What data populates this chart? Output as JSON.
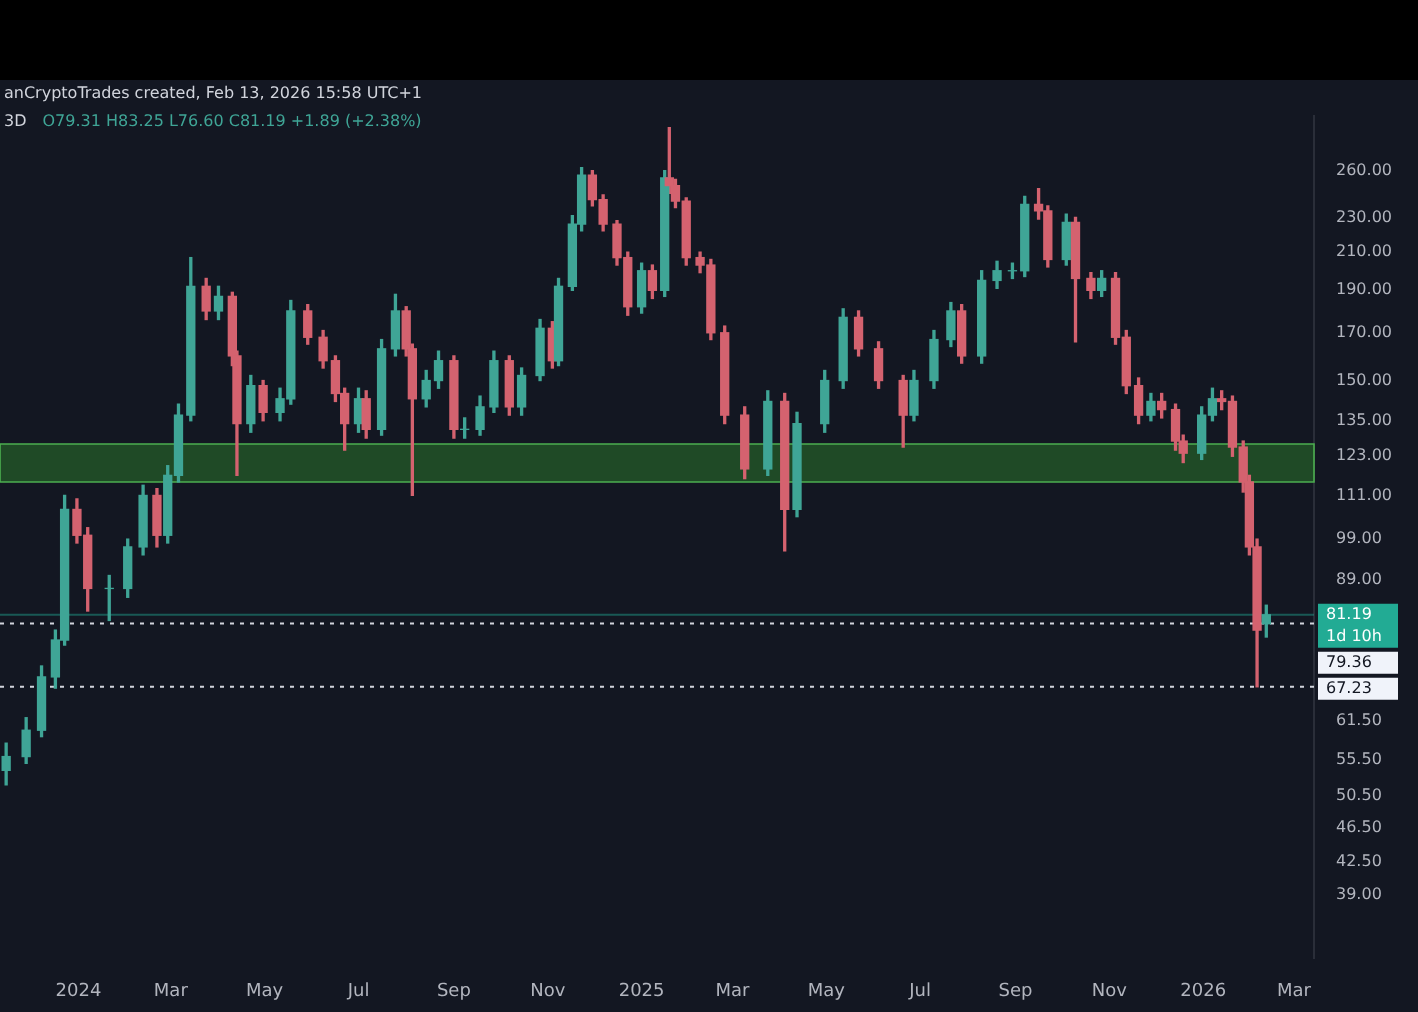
{
  "chart_data": {
    "type": "candlestick",
    "title": "3D",
    "subtitle": "O79.31 H83.25 L76.60 C81.19 +1.89 (+2.38%)",
    "annotations": [
      "anCryptoTrades created, Feb 13, 2026 15:58 UTC+1",
      "1d 10h"
    ],
    "log": true,
    "xlim": [
      "2023-11-11",
      "2026-03-14"
    ],
    "xticks": [
      {
        "value": "2024-01-01",
        "label": "2024"
      },
      {
        "value": "2024-03-01",
        "label": "Mar"
      },
      {
        "value": "2024-05-01",
        "label": "May"
      },
      {
        "value": "2024-07-01",
        "label": "Jul"
      },
      {
        "value": "2024-09-01",
        "label": "Sep"
      },
      {
        "value": "2024-11-01",
        "label": "Nov"
      },
      {
        "value": "2025-01-01",
        "label": "2025"
      },
      {
        "value": "2025-03-01",
        "label": "Mar"
      },
      {
        "value": "2025-05-01",
        "label": "May"
      },
      {
        "value": "2025-07-01",
        "label": "Jul"
      },
      {
        "value": "2025-09-01",
        "label": "Sep"
      },
      {
        "value": "2025-11-01",
        "label": "Nov"
      },
      {
        "value": "2026-01-01",
        "label": "2026"
      },
      {
        "value": "2026-03-01",
        "label": "Mar"
      }
    ],
    "ylim": [
      33,
      300
    ],
    "yticks": [
      {
        "value": 39,
        "label": "39.00"
      },
      {
        "value": 42.5,
        "label": "42.50"
      },
      {
        "value": 46.5,
        "label": "46.50"
      },
      {
        "value": 50.5,
        "label": "50.50"
      },
      {
        "value": 55.5,
        "label": "55.50"
      },
      {
        "value": 61.5,
        "label": "61.50"
      },
      {
        "value": 89,
        "label": "89.00"
      },
      {
        "value": 99,
        "label": "99.00"
      },
      {
        "value": 111,
        "label": "111.00"
      },
      {
        "value": 123,
        "label": "123.00"
      },
      {
        "value": 135,
        "label": "135.00"
      },
      {
        "value": 150,
        "label": "150.00"
      },
      {
        "value": 170,
        "label": "170.00"
      },
      {
        "value": 190,
        "label": "190.00"
      },
      {
        "value": 210,
        "label": "210.00"
      },
      {
        "value": 230,
        "label": "230.00"
      },
      {
        "value": 260,
        "label": "260.00"
      }
    ],
    "bands": [
      {
        "axis": "y",
        "from": 115,
        "to": 127,
        "color": "#1f4a26"
      }
    ],
    "ref_lines": [
      {
        "axis": "y",
        "value": 81.19,
        "label": "81.19",
        "color": "#22ab94",
        "line_style": "solid"
      },
      {
        "axis": "y",
        "value": 79.36,
        "label": "79.36",
        "color": "#d1d4dc",
        "line_style": "dotted"
      },
      {
        "axis": "y",
        "value": 67.23,
        "label": "67.23",
        "color": "#d1d4dc",
        "line_style": "dotted"
      }
    ],
    "x": [
      "2023-11-15",
      "2023-11-28",
      "2023-12-08",
      "2023-12-17",
      "2023-12-23",
      "2023-12-31",
      "2024-01-07",
      "2024-01-21",
      "2024-02-02",
      "2024-02-12",
      "2024-02-21",
      "2024-02-28",
      "2024-03-06",
      "2024-03-14",
      "2024-03-24",
      "2024-04-01",
      "2024-04-10",
      "2024-04-13",
      "2024-04-22",
      "2024-04-30",
      "2024-05-11",
      "2024-05-18",
      "2024-05-29",
      "2024-06-08",
      "2024-06-16",
      "2024-06-22",
      "2024-07-01",
      "2024-07-06",
      "2024-07-16",
      "2024-07-25",
      "2024-08-01",
      "2024-08-05",
      "2024-08-14",
      "2024-08-22",
      "2024-09-01",
      "2024-09-08",
      "2024-09-18",
      "2024-09-27",
      "2024-10-07",
      "2024-10-15",
      "2024-10-27",
      "2024-11-04",
      "2024-11-08",
      "2024-11-17",
      "2024-11-23",
      "2024-11-30",
      "2024-12-07",
      "2024-12-16",
      "2024-12-23",
      "2025-01-01",
      "2025-01-08",
      "2025-01-16",
      "2025-01-19",
      "2025-01-23",
      "2025-01-30",
      "2025-02-08",
      "2025-02-15",
      "2025-02-24",
      "2025-03-09",
      "2025-03-24",
      "2025-04-04",
      "2025-04-12",
      "2025-04-30",
      "2025-05-12",
      "2025-05-22",
      "2025-06-04",
      "2025-06-20",
      "2025-06-27",
      "2025-07-10",
      "2025-07-21",
      "2025-07-28",
      "2025-08-10",
      "2025-08-20",
      "2025-08-30",
      "2025-09-07",
      "2025-09-16",
      "2025-09-22",
      "2025-10-04",
      "2025-10-10",
      "2025-10-20",
      "2025-10-27",
      "2025-11-05",
      "2025-11-12",
      "2025-11-20",
      "2025-11-28",
      "2025-12-05",
      "2025-12-14",
      "2025-12-19",
      "2025-12-31",
      "2026-01-07",
      "2026-01-13",
      "2026-01-20",
      "2026-01-27",
      "2026-01-31",
      "2026-02-05",
      "2026-02-11"
    ],
    "ohlc": [
      [
        54,
        58,
        52,
        56
      ],
      [
        56,
        62,
        55,
        60
      ],
      [
        60,
        71,
        59,
        69
      ],
      [
        69,
        78,
        67,
        76
      ],
      [
        76,
        111,
        75,
        107
      ],
      [
        107,
        110,
        98,
        100
      ],
      [
        100,
        102,
        82,
        87
      ],
      [
        87,
        90,
        80,
        87
      ],
      [
        87,
        99,
        85,
        97
      ],
      [
        97,
        114,
        95,
        111
      ],
      [
        111,
        113,
        97,
        100
      ],
      [
        100,
        120,
        98,
        117
      ],
      [
        117,
        141,
        115,
        137
      ],
      [
        137,
        207,
        135,
        192
      ],
      [
        192,
        196,
        176,
        180
      ],
      [
        180,
        192,
        176,
        187
      ],
      [
        187,
        189,
        156,
        160
      ],
      [
        160,
        162,
        117,
        134
      ],
      [
        134,
        152,
        131,
        148
      ],
      [
        148,
        150,
        135,
        138
      ],
      [
        138,
        147,
        135,
        143
      ],
      [
        143,
        185,
        141,
        180
      ],
      [
        180,
        183,
        165,
        168
      ],
      [
        168,
        171,
        155,
        158
      ],
      [
        158,
        160,
        142,
        145
      ],
      [
        145,
        147,
        125,
        134
      ],
      [
        134,
        147,
        131,
        143
      ],
      [
        143,
        146,
        129,
        132
      ],
      [
        132,
        167,
        130,
        163
      ],
      [
        163,
        188,
        160,
        180
      ],
      [
        180,
        182,
        160,
        163
      ],
      [
        163,
        165,
        111,
        143
      ],
      [
        143,
        154,
        140,
        150
      ],
      [
        150,
        162,
        147,
        158
      ],
      [
        158,
        160,
        129,
        132
      ],
      [
        132,
        136,
        129,
        132
      ],
      [
        132,
        144,
        130,
        140
      ],
      [
        140,
        162,
        138,
        158
      ],
      [
        158,
        160,
        137,
        140
      ],
      [
        140,
        155,
        137,
        152
      ],
      [
        152,
        176,
        150,
        172
      ],
      [
        172,
        175,
        155,
        158
      ],
      [
        158,
        196,
        156,
        192
      ],
      [
        192,
        231,
        190,
        226
      ],
      [
        226,
        262,
        222,
        257
      ],
      [
        257,
        260,
        237,
        241
      ],
      [
        241,
        244,
        222,
        226
      ],
      [
        226,
        228,
        203,
        207
      ],
      [
        207,
        210,
        178,
        182
      ],
      [
        182,
        204,
        179,
        200
      ],
      [
        200,
        203,
        186,
        190
      ],
      [
        190,
        260,
        187,
        255
      ],
      [
        255,
        291,
        245,
        250
      ],
      [
        250,
        254,
        236,
        240
      ],
      [
        240,
        242,
        203,
        207
      ],
      [
        207,
        210,
        199,
        203
      ],
      [
        203,
        206,
        167,
        170
      ],
      [
        170,
        173,
        134,
        137
      ],
      [
        137,
        140,
        116,
        119
      ],
      [
        119,
        146,
        117,
        142
      ],
      [
        142,
        145,
        96,
        107
      ],
      [
        107,
        138,
        105,
        134
      ],
      [
        134,
        154,
        131,
        150
      ],
      [
        150,
        181,
        147,
        177
      ],
      [
        177,
        180,
        160,
        163
      ],
      [
        163,
        166,
        147,
        150
      ],
      [
        150,
        152,
        126,
        137
      ],
      [
        137,
        154,
        135,
        150
      ],
      [
        150,
        171,
        147,
        167
      ],
      [
        167,
        184,
        164,
        180
      ],
      [
        180,
        183,
        157,
        160
      ],
      [
        160,
        200,
        157,
        195
      ],
      [
        195,
        205,
        191,
        200
      ],
      [
        200,
        204,
        196,
        200
      ],
      [
        200,
        243,
        197,
        238
      ],
      [
        238,
        248,
        229,
        234
      ],
      [
        234,
        237,
        202,
        206
      ],
      [
        206,
        232,
        203,
        227
      ],
      [
        227,
        230,
        166,
        196
      ],
      [
        196,
        199,
        186,
        190
      ],
      [
        190,
        200,
        187,
        196
      ],
      [
        196,
        199,
        165,
        168
      ],
      [
        168,
        171,
        145,
        148
      ],
      [
        148,
        151,
        134,
        137
      ],
      [
        137,
        145,
        135,
        142
      ],
      [
        142,
        145,
        136,
        139
      ],
      [
        139,
        141,
        125,
        128
      ],
      [
        128,
        130,
        121,
        124
      ],
      [
        124,
        140,
        122,
        137
      ],
      [
        137,
        147,
        135,
        143
      ],
      [
        143,
        146,
        139,
        142
      ],
      [
        142,
        144,
        123,
        126
      ],
      [
        126,
        128,
        112,
        115
      ],
      [
        115,
        117,
        95,
        97
      ],
      [
        97,
        99,
        67.23,
        78
      ],
      [
        79.31,
        83.25,
        76.6,
        81.19
      ]
    ]
  }
}
